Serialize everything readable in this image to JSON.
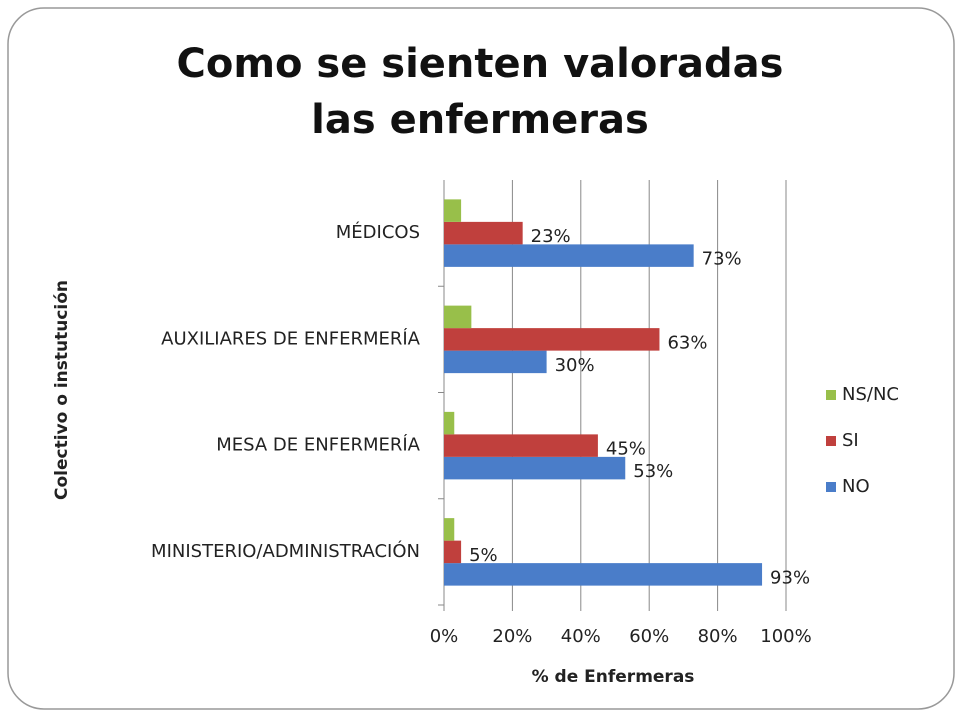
{
  "chart_data": {
    "type": "bar",
    "orientation": "horizontal",
    "title": "Como se sienten valoradas las enfermeras",
    "x_label": "% de Enfermeras",
    "y_label": "Colectivo o instutución",
    "categories": [
      "MINISTERIO/ADMINISTRACIÓN",
      "MESA DE ENFERMERÍA",
      "AUXILIARES DE ENFERMERÍA",
      "MÉDICOS"
    ],
    "series": [
      {
        "name": "NO",
        "color": "#4a7dc9",
        "values": [
          93,
          53,
          30,
          73
        ],
        "value_labels": [
          "93%",
          "53%",
          "30%",
          "73%"
        ]
      },
      {
        "name": "SI",
        "color": "#c0403d",
        "values": [
          5,
          45,
          63,
          23
        ],
        "value_labels": [
          "5%",
          "45%",
          "63%",
          "23%"
        ]
      },
      {
        "name": "NS/NC",
        "color": "#98bf4a",
        "values": [
          3,
          3,
          8,
          5
        ]
      }
    ],
    "xlim": [
      0,
      100
    ],
    "xticks": [
      {
        "value": 0,
        "label": "0%"
      },
      {
        "value": 20,
        "label": "20%"
      },
      {
        "value": 40,
        "label": "40%"
      },
      {
        "value": 60,
        "label": "60%"
      },
      {
        "value": 80,
        "label": "80%"
      },
      {
        "value": 100,
        "label": "100%"
      }
    ],
    "grid": true,
    "legend": "right"
  }
}
